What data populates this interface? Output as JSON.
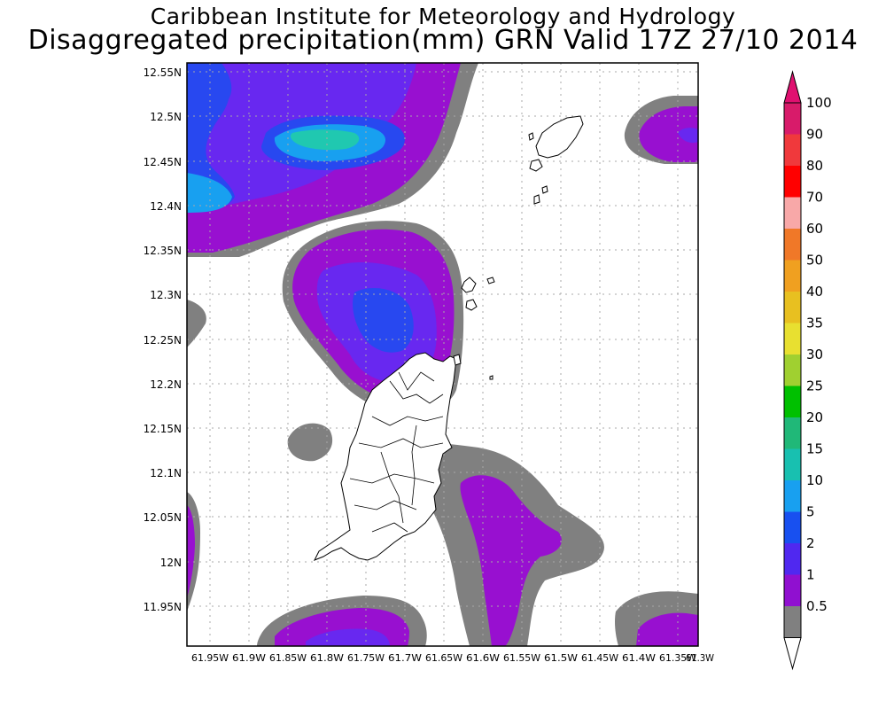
{
  "header": {
    "line1": "Caribbean Institute for Meteorology and Hydrology",
    "line2": "Disaggregated precipitation(mm) GRN Valid 17Z 27/10 2014"
  },
  "axes": {
    "y_labels": [
      "12.55N",
      "12.5N",
      "12.45N",
      "12.4N",
      "12.35N",
      "12.3N",
      "12.25N",
      "12.2N",
      "12.15N",
      "12.1N",
      "12.05N",
      "12N",
      "11.95N"
    ],
    "x_labels": [
      "61.95W",
      "61.9W",
      "61.85W",
      "61.8W",
      "61.75W",
      "61.7W",
      "61.65W",
      "61.6W",
      "61.55W",
      "61.5W",
      "61.45W",
      "61.4W",
      "61.35W",
      "61.3W"
    ]
  },
  "colorbar": {
    "levels": [
      "100",
      "90",
      "80",
      "70",
      "60",
      "50",
      "40",
      "35",
      "30",
      "25",
      "20",
      "15",
      "10",
      "5",
      "2",
      "1",
      "0.5"
    ],
    "colors": [
      "#d81b6a",
      "#f0393c",
      "#ff0000",
      "#f8a8a8",
      "#f07828",
      "#f0a020",
      "#e8c020",
      "#e8e030",
      "#a0d030",
      "#00c000",
      "#20b878",
      "#18c0b0",
      "#18a0f0",
      "#1850f0",
      "#5028f0",
      "#9010d0",
      "#808080"
    ],
    "top_arrow_color": "#e01070",
    "bottom_arrow_color": "#ffffff"
  },
  "legend_colors": {
    "gray": "#808080",
    "purple": "#9810d0",
    "violet": "#6828f0",
    "blue": "#2848f0",
    "lightblue": "#18a0f0",
    "cyan": "#20c8b0"
  }
}
